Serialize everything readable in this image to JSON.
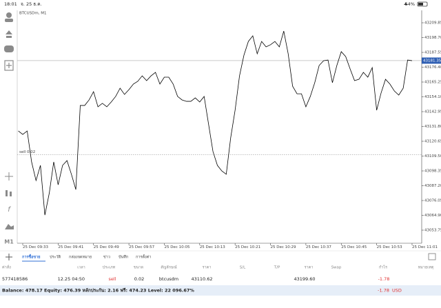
{
  "status_bar": {
    "time": "18:01",
    "date": "จ. 25 ธ.ค.",
    "battery": "54%"
  },
  "toolbar": {
    "timeframe": "M1"
  },
  "chart_data": {
    "type": "line",
    "title": "BTCUSDm, M1",
    "categories": [
      null,
      "25 Dec 09:33",
      null,
      null,
      null,
      null,
      null,
      null,
      null,
      "25 Dec 09:41",
      null,
      null,
      null,
      null,
      null,
      null,
      null,
      "25 Dec 09:49",
      null,
      null,
      null,
      null,
      null,
      null,
      null,
      "25 Dec 09:57",
      null,
      null,
      null,
      null,
      null,
      null,
      null,
      "25 Dec 10:05",
      null,
      null,
      null,
      null,
      null,
      null,
      null,
      "25 Dec 10:13",
      null,
      null,
      null,
      null,
      null,
      null,
      null,
      "25 Dec 10:21",
      null,
      null,
      null,
      null,
      null,
      null,
      null,
      "25 Dec 10:29",
      null,
      null,
      null,
      null,
      null,
      null,
      null,
      "25 Dec 10:37",
      null,
      null,
      null,
      null,
      null,
      null,
      null,
      "25 Dec 10:45",
      null,
      null,
      null,
      null,
      null,
      null,
      null,
      "25 Dec 10:53",
      null,
      null,
      null,
      null,
      null,
      null,
      null,
      "25 Dec 11:01"
    ],
    "values": [
      43128.4,
      43125.8,
      43128.4,
      43105.1,
      43091.1,
      43102.5,
      43065.1,
      43081.7,
      43105.1,
      43087.9,
      43102.5,
      43106.1,
      43095.8,
      43084.3,
      43147.6,
      43147.6,
      43151.8,
      43158.0,
      43146.6,
      43149.2,
      43146.6,
      43150.2,
      43154.4,
      43160.6,
      43155.9,
      43159.5,
      43163.7,
      43165.8,
      43169.9,
      43166.3,
      43169.9,
      43172.5,
      43163.7,
      43168.9,
      43168.9,
      43163.7,
      43154.4,
      43151.8,
      43150.7,
      43150.7,
      43153.3,
      43150.2,
      43154.4,
      43133.6,
      43112.9,
      43102.5,
      43098.3,
      43095.8,
      43123.2,
      43144.0,
      43169.9,
      43185.5,
      43195.8,
      43200.0,
      43186.5,
      43195.8,
      43191.7,
      43193.3,
      43195.8,
      43191.7,
      43203.6,
      43186.5,
      43162.1,
      43156.4,
      43156.4,
      43146.6,
      43154.4,
      43164.7,
      43177.7,
      43181.3,
      43181.8,
      43164.7,
      43177.7,
      43188.1,
      43184.4,
      43175.1,
      43166.3,
      43167.3,
      43172.5,
      43168.9,
      43176.1,
      43144.0,
      43157.0,
      43167.3,
      43163.7,
      43158.5,
      43155.4,
      43160.6,
      43181.8,
      43181.3
    ],
    "color": "#000000",
    "ylim": [
      43043.9,
      43219.2
    ],
    "yticks": [
      43209.85,
      {
        "value": 43198.7,
        "label": "43198.70"
      },
      43187.55,
      {
        "value": 43176.4,
        "label": "43176.40"
      },
      43165.25,
      {
        "value": 43154.1,
        "label": "43154.10"
      },
      43142.95,
      {
        "value": 43131.8,
        "label": "43131.80"
      },
      43120.65,
      {
        "value": 43109.5,
        "label": "43109.50"
      },
      43098.35,
      {
        "value": 43087.2,
        "label": "43087.20"
      },
      43076.05,
      {
        "value": 43064.9,
        "label": "43064.90"
      },
      43053.75
    ],
    "current_price": 43181.35,
    "position_line": {
      "label": "sell 0.02",
      "value": 43110.62
    }
  },
  "tabs": [
    "การซื้อขาย",
    "ประวัติ",
    "กล่องจดหมาย",
    "ข่าว",
    "บันทึก",
    "การตั้งค่า"
  ],
  "trade_table": {
    "headers": [
      "ค่าสั่ง",
      "เวลา",
      "ประเภท",
      "ขนาด",
      "สัญลักษณ์",
      "ราคา",
      "S/L",
      "T/P",
      "ราคา",
      "Swap",
      "กำไร",
      "หมายเหตุ"
    ],
    "rows": [
      [
        "577418586",
        "12.25 04:50",
        "sell",
        "0.02",
        "btcusdm",
        "43110.62",
        "",
        "",
        "43199.60",
        "",
        "-1.78",
        ""
      ]
    ]
  },
  "footer": {
    "summary": "Balance: 478.17 Equity: 476.39 หลักประกัน: 2.16 ฟรี: 474.23 Level: 22 096.67%",
    "profit": "-1.78",
    "currency": "USD"
  }
}
